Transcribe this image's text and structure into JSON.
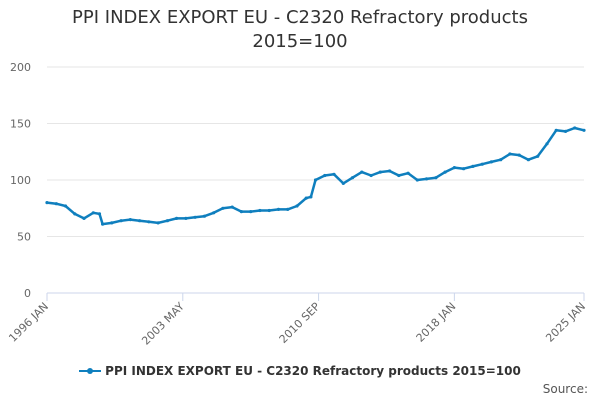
{
  "title_line1": "PPI INDEX EXPORT EU - C2320 Refractory products",
  "title_line2": "2015=100",
  "legend_label": "PPI INDEX EXPORT EU - C2320 Refractory products 2015=100",
  "source_label": "Source:",
  "colors": {
    "series": "#0f7fbe",
    "grid": "#e6e6e6",
    "axis": "#ccd6eb"
  },
  "chart_data": {
    "type": "line",
    "title": "PPI INDEX EXPORT EU - C2320 Refractory products 2015=100",
    "ylim": [
      0,
      200
    ],
    "yticks": [
      0,
      50,
      100,
      150,
      200
    ],
    "xlim": [
      "1996-01",
      "2025-01"
    ],
    "xtick_labels": [
      {
        "label": "1996 JAN",
        "date": "1996-01"
      },
      {
        "label": "2003 MAY",
        "date": "2003-05"
      },
      {
        "label": "2010 SEP",
        "date": "2010-09"
      },
      {
        "label": "2018 JAN",
        "date": "2018-01"
      },
      {
        "label": "2025 JAN",
        "date": "2025-01"
      }
    ],
    "grid": true,
    "legend": "bottom",
    "series": [
      {
        "name": "PPI INDEX EXPORT EU - C2320 Refractory products 2015=100",
        "points": [
          [
            "1996-01",
            80
          ],
          [
            "1996-07",
            79
          ],
          [
            "1997-01",
            77
          ],
          [
            "1997-07",
            70
          ],
          [
            "1998-01",
            66
          ],
          [
            "1998-07",
            71
          ],
          [
            "1998-11",
            70
          ],
          [
            "1999-01",
            61
          ],
          [
            "1999-07",
            62
          ],
          [
            "2000-01",
            64
          ],
          [
            "2000-07",
            65
          ],
          [
            "2001-01",
            64
          ],
          [
            "2001-07",
            63
          ],
          [
            "2002-01",
            62
          ],
          [
            "2002-07",
            64
          ],
          [
            "2003-01",
            66
          ],
          [
            "2003-07",
            66
          ],
          [
            "2004-01",
            67
          ],
          [
            "2004-07",
            68
          ],
          [
            "2005-01",
            71
          ],
          [
            "2005-07",
            75
          ],
          [
            "2006-01",
            76
          ],
          [
            "2006-07",
            72
          ],
          [
            "2007-01",
            72
          ],
          [
            "2007-07",
            73
          ],
          [
            "2008-01",
            73
          ],
          [
            "2008-07",
            74
          ],
          [
            "2009-01",
            74
          ],
          [
            "2009-07",
            77
          ],
          [
            "2010-01",
            84
          ],
          [
            "2010-04",
            85
          ],
          [
            "2010-07",
            100
          ],
          [
            "2011-01",
            104
          ],
          [
            "2011-07",
            105
          ],
          [
            "2012-01",
            97
          ],
          [
            "2012-07",
            102
          ],
          [
            "2013-01",
            107
          ],
          [
            "2013-07",
            104
          ],
          [
            "2014-01",
            107
          ],
          [
            "2014-07",
            108
          ],
          [
            "2015-01",
            104
          ],
          [
            "2015-07",
            106
          ],
          [
            "2016-01",
            100
          ],
          [
            "2016-07",
            101
          ],
          [
            "2017-01",
            102
          ],
          [
            "2017-07",
            107
          ],
          [
            "2018-01",
            111
          ],
          [
            "2018-07",
            110
          ],
          [
            "2019-01",
            112
          ],
          [
            "2019-07",
            114
          ],
          [
            "2020-01",
            116
          ],
          [
            "2020-07",
            118
          ],
          [
            "2021-01",
            123
          ],
          [
            "2021-07",
            122
          ],
          [
            "2022-01",
            118
          ],
          [
            "2022-07",
            121
          ],
          [
            "2023-01",
            132
          ],
          [
            "2023-07",
            144
          ],
          [
            "2024-01",
            143
          ],
          [
            "2024-07",
            146
          ],
          [
            "2025-01",
            144
          ]
        ]
      }
    ]
  }
}
